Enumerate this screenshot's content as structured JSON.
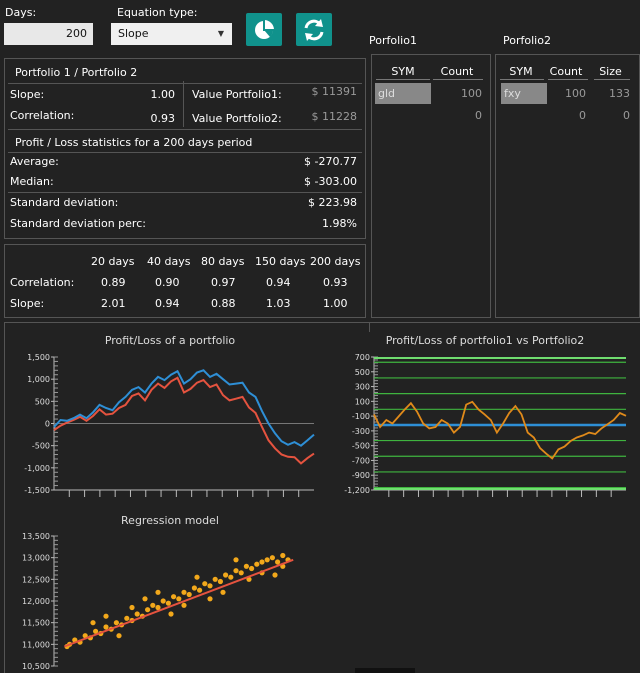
{
  "controls": {
    "days_label": "Days:",
    "days_value": "200",
    "eq_label": "Equation type:",
    "eq_value": "Slope",
    "chart_button_icon": "pie-chart-icon",
    "refresh_button_icon": "refresh-icon"
  },
  "stats": {
    "title": "Portfolio 1 / Portfolio 2",
    "slope_label": "Slope:",
    "slope_value": "1.00",
    "correlation_label": "Correlation:",
    "correlation_value": "0.93",
    "vp1_label": "Value Portfolio1:",
    "vp1_value": "$ 11391",
    "vp2_label": "Value Portfolio2:",
    "vp2_value": "$ 11228",
    "pl_title": "Profit / Loss statistics for a 200 days period",
    "avg_label": "Average:",
    "avg_value": "$ -270.77",
    "median_label": "Median:",
    "median_value": "$ -303.00",
    "std_label": "Standard deviation:",
    "std_value": "$ 223.98",
    "stdp_label": "Standard deviation perc:",
    "stdp_value": "1.98%"
  },
  "periods": {
    "headers": [
      "20 days",
      "40 days",
      "80 days",
      "150 days",
      "200 days"
    ],
    "correlation_label": "Correlation:",
    "correlation": [
      "0.89",
      "0.90",
      "0.97",
      "0.94",
      "0.93"
    ],
    "slope_label": "Slope:",
    "slope": [
      "2.01",
      "0.94",
      "0.88",
      "1.03",
      "1.00"
    ]
  },
  "portfolio1": {
    "title": "Porfolio1",
    "headers": [
      "SYM",
      "Count"
    ],
    "rows": [
      [
        "gld",
        "100"
      ],
      [
        "",
        "0"
      ]
    ]
  },
  "portfolio2": {
    "title": "Porfolio2",
    "headers": [
      "SYM",
      "Count",
      "Size"
    ],
    "rows": [
      [
        "fxy",
        "100",
        "133"
      ],
      [
        "",
        "0",
        "0"
      ]
    ]
  },
  "colors": {
    "accent": "#10928c",
    "series_blue": "#2e8fd6",
    "series_red": "#e5533f",
    "series_orange": "#e08a1a",
    "green_lines": "#3fb43f"
  },
  "chart_data": [
    {
      "type": "line",
      "title": "Profit/Loss of a portfolio",
      "ylim": [
        -1500,
        1500
      ],
      "yticks": [
        "1,500",
        "1,000",
        "500",
        "0",
        "-500",
        "-1,000",
        "-1,500"
      ],
      "series": [
        {
          "values": [
            -80,
            80,
            60,
            120,
            200,
            120,
            250,
            420,
            350,
            300,
            480,
            600,
            760,
            820,
            700,
            900,
            1050,
            980,
            1100,
            1180,
            900,
            1000,
            1150,
            1200,
            1050,
            1120,
            1000,
            880,
            900,
            920,
            700,
            600,
            280,
            0,
            -220,
            -400,
            -480,
            -420,
            -500,
            -380,
            -250
          ]
        },
        {
          "values": [
            -150,
            -50,
            20,
            80,
            150,
            60,
            170,
            320,
            200,
            220,
            350,
            420,
            620,
            680,
            520,
            760,
            900,
            800,
            950,
            1030,
            700,
            780,
            920,
            980,
            820,
            880,
            640,
            520,
            560,
            600,
            360,
            240,
            -80,
            -380,
            -560,
            -700,
            -750,
            -760,
            -900,
            -780,
            -680
          ]
        }
      ]
    },
    {
      "type": "line",
      "title": "Profit/Loss of portfolio1 vs Portfolio2",
      "ylim": [
        -1200,
        700
      ],
      "yticks": [
        "700",
        "500",
        "300",
        "100",
        "-100",
        "-300",
        "-500",
        "-700",
        "-900",
        "-1,200"
      ],
      "series": [
        {
          "values": [
            -120,
            -300,
            -200,
            -250,
            -150,
            -50,
            40,
            -80,
            -250,
            -320,
            -300,
            -200,
            -250,
            -380,
            -300,
            20,
            60,
            -50,
            -120,
            -200,
            -380,
            -250,
            -100,
            0,
            -120,
            -380,
            -450,
            -600,
            -680,
            -750,
            -620,
            -580,
            -500,
            -450,
            -420,
            -380,
            -400,
            -320,
            -260,
            -200,
            -100,
            -140
          ]
        }
      ],
      "reference_lines": [
        -270.77,
        -47,
        177,
        401,
        625,
        -494,
        -718,
        -942,
        -1166
      ]
    },
    {
      "type": "scatter",
      "title": "Regression model",
      "ylim": [
        10500,
        13500
      ],
      "yticks": [
        "13,500",
        "13,000",
        "12,500",
        "12,000",
        "11,500",
        "11,000",
        "10,500"
      ],
      "points": [
        [
          0.05,
          10950
        ],
        [
          0.06,
          11000
        ],
        [
          0.08,
          11100
        ],
        [
          0.1,
          11050
        ],
        [
          0.12,
          11200
        ],
        [
          0.14,
          11150
        ],
        [
          0.16,
          11300
        ],
        [
          0.18,
          11250
        ],
        [
          0.2,
          11400
        ],
        [
          0.22,
          11350
        ],
        [
          0.24,
          11500
        ],
        [
          0.26,
          11450
        ],
        [
          0.28,
          11600
        ],
        [
          0.3,
          11550
        ],
        [
          0.32,
          11700
        ],
        [
          0.34,
          11650
        ],
        [
          0.36,
          11800
        ],
        [
          0.38,
          11900
        ],
        [
          0.4,
          11850
        ],
        [
          0.42,
          12000
        ],
        [
          0.44,
          11950
        ],
        [
          0.46,
          12100
        ],
        [
          0.48,
          12050
        ],
        [
          0.5,
          12200
        ],
        [
          0.52,
          12150
        ],
        [
          0.54,
          12300
        ],
        [
          0.56,
          12250
        ],
        [
          0.58,
          12400
        ],
        [
          0.6,
          12350
        ],
        [
          0.62,
          12500
        ],
        [
          0.64,
          12450
        ],
        [
          0.66,
          12600
        ],
        [
          0.68,
          12550
        ],
        [
          0.7,
          12700
        ],
        [
          0.72,
          12650
        ],
        [
          0.74,
          12800
        ],
        [
          0.76,
          12750
        ],
        [
          0.78,
          12850
        ],
        [
          0.8,
          12900
        ],
        [
          0.82,
          12950
        ],
        [
          0.84,
          13000
        ],
        [
          0.86,
          12900
        ],
        [
          0.88,
          13050
        ],
        [
          0.9,
          12950
        ],
        [
          0.15,
          11500
        ],
        [
          0.25,
          11200
        ],
        [
          0.35,
          12050
        ],
        [
          0.45,
          11700
        ],
        [
          0.55,
          12550
        ],
        [
          0.65,
          12200
        ],
        [
          0.75,
          12500
        ],
        [
          0.85,
          12600
        ],
        [
          0.3,
          11850
        ],
        [
          0.5,
          11900
        ],
        [
          0.7,
          12950
        ],
        [
          0.6,
          12050
        ],
        [
          0.4,
          12200
        ],
        [
          0.2,
          11650
        ],
        [
          0.8,
          12650
        ],
        [
          0.88,
          12800
        ]
      ],
      "fit": [
        [
          0.04,
          10950
        ],
        [
          0.92,
          12950
        ]
      ]
    }
  ]
}
